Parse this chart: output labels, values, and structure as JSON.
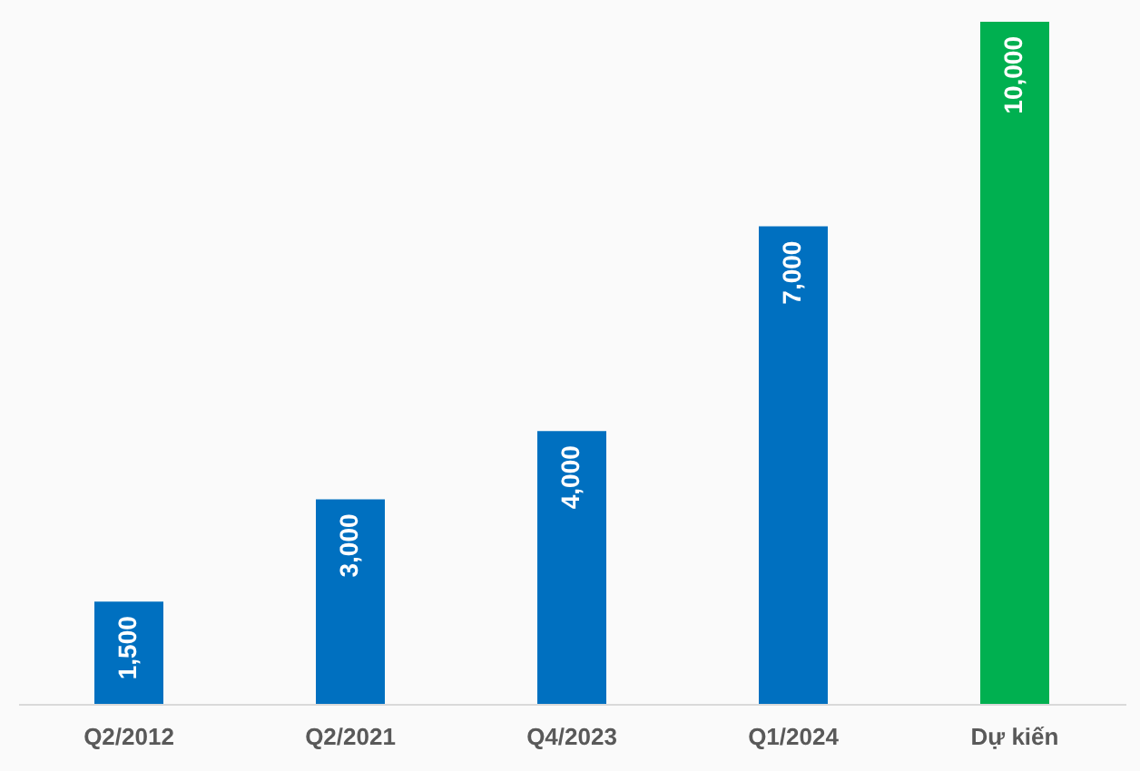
{
  "chart_data": {
    "type": "bar",
    "categories": [
      "Q2/2012",
      "Q2/2021",
      "Q4/2023",
      "Q1/2024",
      "Dự kiến"
    ],
    "values": [
      1500,
      3000,
      4000,
      7000,
      10000
    ],
    "value_labels": [
      "1,500",
      "3,000",
      "4,000",
      "7,000",
      "10,000"
    ],
    "colors": [
      "#0070c0",
      "#0070c0",
      "#0070c0",
      "#0070c0",
      "#00b050"
    ],
    "tick_labels": "x"
  }
}
